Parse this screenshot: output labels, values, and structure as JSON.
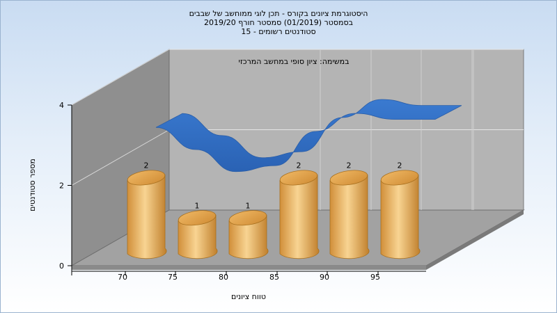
{
  "titles": [
    "היסטוגרמת ציונים בקורס - תכן לוגי ממוחשב של שבבים",
    "בסמסטר  (01/2019)  סמסטר חורף 2019/20",
    "סטודנטים רשומים - 15"
  ],
  "chart_data": {
    "type": "bar",
    "title": "היסטוגרמת ציונים בקורס - תכן לוגי ממוחשב של שבבים",
    "annotation": "במשימה: ציון סופי במחשב המרכזי",
    "xlabel": "טווח ציונים",
    "ylabel": "מספר סטודנטים",
    "x_ticks": [
      "70",
      "75",
      "80",
      "85",
      "90",
      "95"
    ],
    "y_ticks": [
      0,
      2,
      4
    ],
    "ylim": [
      0,
      4
    ],
    "grid": true,
    "bars": [
      {
        "x": "70",
        "value": 2
      },
      {
        "x": "75",
        "value": 1
      },
      {
        "x": "80",
        "value": 1
      },
      {
        "x": "85",
        "value": 2
      },
      {
        "x": "90",
        "value": 2
      },
      {
        "x": "95",
        "value": 2
      }
    ],
    "curve": {
      "type": "ribbon",
      "color": "#2f6fc4",
      "values": [
        2.75,
        2.2,
        1.65,
        1.8,
        2.65,
        3.1,
        2.95,
        2.95
      ]
    },
    "colors": {
      "bar_light": "#f7d28e",
      "bar_mid": "#e6a24a",
      "bar_dark": "#b97a26",
      "wall": "#b3b3b3",
      "side_wall": "#8d8d8d",
      "floor": "#9e9e9e"
    }
  }
}
